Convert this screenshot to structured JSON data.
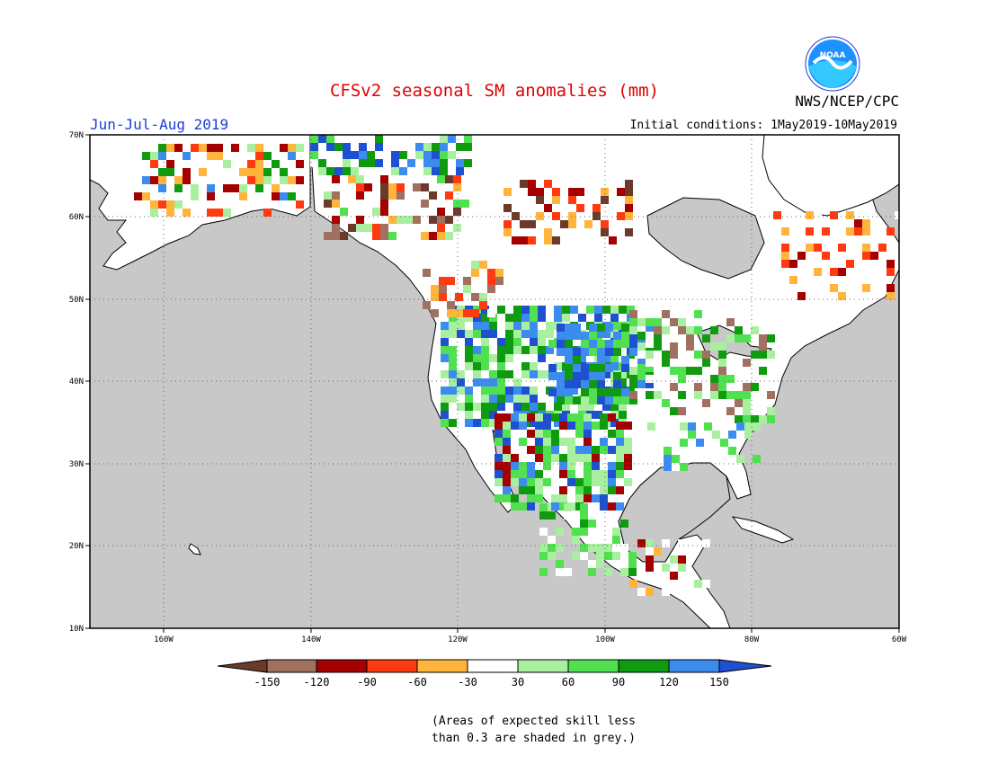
{
  "title": "CFSv2 seasonal SM anomalies (mm)",
  "season": "Jun-Jul-Aug 2019",
  "initial_conditions": "Initial conditions: 1May2019-10May2019",
  "agency": "NWS/NCEP/CPC",
  "logo_text": "NOAA",
  "map": {
    "region": "North America",
    "lat_labels": [
      "70N",
      "60N",
      "50N",
      "40N",
      "30N",
      "20N",
      "10N"
    ],
    "lon_labels": [
      "160W",
      "140W",
      "120W",
      "100W",
      "80W",
      "60W"
    ],
    "lat_range": [
      10,
      70
    ],
    "lon_range": [
      -170,
      -60
    ],
    "grid": "dotted",
    "ocean_color": "#c8c8c8",
    "land_color": "#ffffff"
  },
  "legend": {
    "tick_labels": [
      "-150",
      "-120",
      "-90",
      "-60",
      "-30",
      "30",
      "60",
      "90",
      "120",
      "150"
    ],
    "colors": [
      "#6b3a2a",
      "#a07060",
      "#a50000",
      "#ff3a10",
      "#ffb43c",
      "#ffffff",
      "#a8f0a0",
      "#50e050",
      "#109a10",
      "#3c8cf0",
      "#1e50d0"
    ]
  },
  "note": {
    "line1": "(Areas of expected skill less",
    "line2": "than 0.3 are shaded in grey.)"
  }
}
